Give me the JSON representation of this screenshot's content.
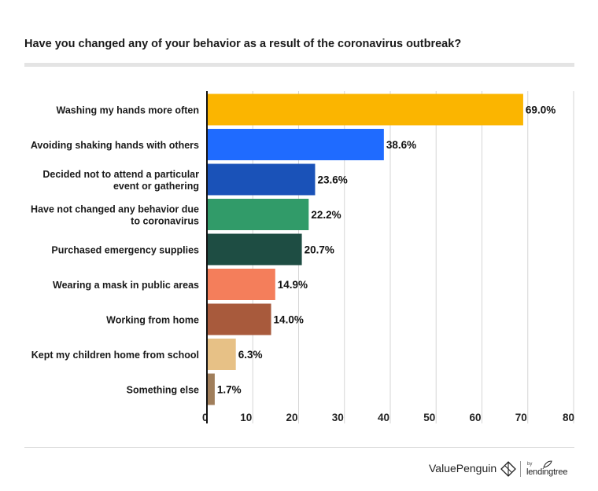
{
  "title": "Have you changed any of your behavior as a result of the coronavirus outbreak?",
  "chart_data": {
    "type": "bar",
    "orientation": "horizontal",
    "title": "Have you changed any of your behavior as a result of the coronavirus outbreak?",
    "xlim": [
      0,
      80
    ],
    "x_ticks": [
      0,
      10,
      20,
      30,
      40,
      50,
      60,
      70,
      80
    ],
    "grid": "vertical",
    "categories": [
      [
        "Washing my hands more often"
      ],
      [
        "Avoiding shaking hands with others"
      ],
      [
        "Decided not to attend a particular",
        "event or gathering"
      ],
      [
        "Have not changed any behavior due",
        "to coronavirus"
      ],
      [
        "Purchased emergency supplies"
      ],
      [
        "Wearing a mask in public areas"
      ],
      [
        "Working from home"
      ],
      [
        "Kept my children home from school"
      ],
      [
        "Something else"
      ]
    ],
    "values": [
      69.0,
      38.6,
      23.6,
      22.2,
      20.7,
      14.9,
      14.0,
      6.3,
      1.7
    ],
    "data_labels": [
      "69.0%",
      "38.6%",
      "23.6%",
      "22.2%",
      "20.7%",
      "14.9%",
      "14.0%",
      "6.3%",
      "1.7%"
    ],
    "colors": [
      "#FBB500",
      "#1F6BFF",
      "#1A52B8",
      "#319B69",
      "#1E4D43",
      "#F47E5B",
      "#A85A3C",
      "#E7C186",
      "#A07E5B"
    ]
  },
  "footer": {
    "brand": "ValuePenguin",
    "by": "by",
    "partner": "lendingtree",
    "brand_icon": "valuepenguin-logo-icon",
    "partner_icon": "lendingtree-leaf-icon"
  }
}
